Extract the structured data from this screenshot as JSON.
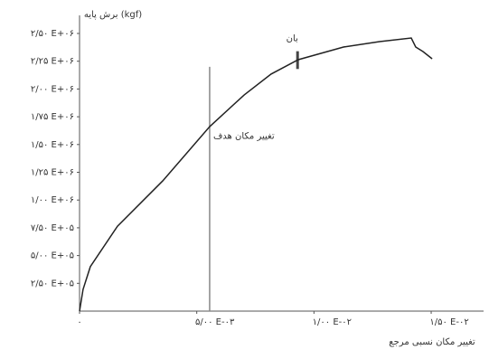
{
  "chart_data": {
    "type": "line",
    "y_label": "برش پایه (kgf)",
    "x_label": "تغییر مکان نسبی مرجع",
    "x": [
      0,
      0.00015,
      0.00046,
      0.00162,
      0.00355,
      0.00555,
      0.00702,
      0.00817,
      0.00933,
      0.01126,
      0.0128,
      0.01415,
      0.01434,
      0.01465,
      0.01504
    ],
    "series": [
      {
        "color": "#222222",
        "values": [
          0,
          195000,
          400000,
          765000,
          1173000,
          1661000,
          1946000,
          2134000,
          2264000,
          2378000,
          2427000,
          2459000,
          2378000,
          2337000,
          2272000
        ]
      }
    ],
    "xlim": [
      0,
      0.0155
    ],
    "ylim": [
      0,
      2500000
    ],
    "xticks": [
      {
        "value": 0,
        "label": "۰"
      },
      {
        "value": 0.005,
        "label": "۵/۰۰ E-۰۳"
      },
      {
        "value": 0.01,
        "label": "۱/۰۰ E-۰۲"
      },
      {
        "value": 0.015,
        "label": "۱/۵۰ E-۰۲"
      }
    ],
    "yticks": [
      {
        "value": 250000,
        "label": "۲/۵۰ E+۰۵"
      },
      {
        "value": 500000,
        "label": "۵/۰۰ E+۰۵"
      },
      {
        "value": 750000,
        "label": "۷/۵۰ E+۰۵"
      },
      {
        "value": 1000000,
        "label": "۱/۰۰ E+۰۶"
      },
      {
        "value": 1250000,
        "label": "۱/۲۵ E+۰۶"
      },
      {
        "value": 1500000,
        "label": "۱/۵۰ E+۰۶"
      },
      {
        "value": 1750000,
        "label": "۱/۷۵ E+۰۶"
      },
      {
        "value": 2000000,
        "label": "۲/۰۰ E+۰۶"
      },
      {
        "value": 2250000,
        "label": "۲/۲۵ E+۰۶"
      },
      {
        "value": 2500000,
        "label": "۲/۵۰ E+۰۶"
      }
    ],
    "annotations": [
      {
        "text": "تغییر مکان هدف",
        "x": 0.00555,
        "style": "vertical-line"
      },
      {
        "text": "بان",
        "x": 0.0093,
        "y": [
          2180000,
          2340000
        ],
        "style": "bar"
      }
    ]
  }
}
